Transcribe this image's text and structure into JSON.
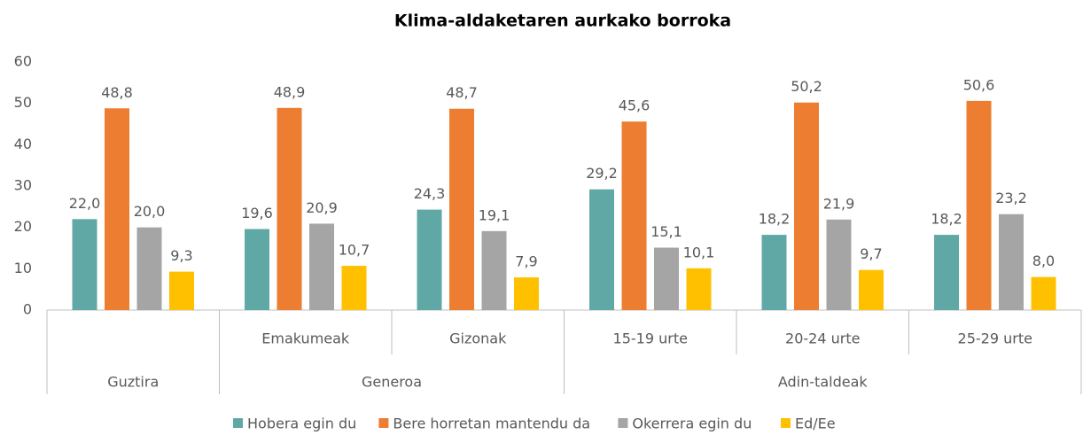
{
  "chart_data": {
    "type": "bar",
    "title": "Klima-aldaketaren aurkako borroka",
    "groups": [
      {
        "name": "Guztira",
        "categories": [
          null
        ]
      },
      {
        "name": "Generoa",
        "categories": [
          "Emakumeak",
          "Gizonak"
        ]
      },
      {
        "name": "Adin-taldeak",
        "categories": [
          "15-19 urte",
          "20-24 urte",
          "25-29 urte"
        ]
      }
    ],
    "series": [
      {
        "name": "Hobera egin du",
        "color": "#5fa8a5",
        "values": [
          22.0,
          19.6,
          24.3,
          29.2,
          18.2,
          18.2
        ],
        "value_labels": [
          "22,0",
          "19,6",
          "24,3",
          "29,2",
          "18,2",
          "18,2"
        ]
      },
      {
        "name": "Bere horretan mantendu da",
        "color": "#ed7d31",
        "values": [
          48.8,
          48.9,
          48.7,
          45.6,
          50.2,
          50.6
        ],
        "value_labels": [
          "48,8",
          "48,9",
          "48,7",
          "45,6",
          "50,2",
          "50,6"
        ]
      },
      {
        "name": "Okerrera egin du",
        "color": "#a5a5a5",
        "values": [
          20.0,
          20.9,
          19.1,
          15.1,
          21.9,
          23.2
        ],
        "value_labels": [
          "20,0",
          "20,9",
          "19,1",
          "15,1",
          "21,9",
          "23,2"
        ]
      },
      {
        "name": "Ed/Ee",
        "color": "#ffc000",
        "values": [
          9.3,
          10.7,
          7.9,
          10.1,
          9.7,
          8.0
        ],
        "value_labels": [
          "9,3",
          "10,7",
          "7,9",
          "10,1",
          "9,7",
          "8,0"
        ]
      }
    ],
    "ylim": [
      0,
      60
    ],
    "yticks": [
      0,
      10,
      20,
      30,
      40,
      50,
      60
    ],
    "grid": false,
    "legend": "bottom"
  }
}
